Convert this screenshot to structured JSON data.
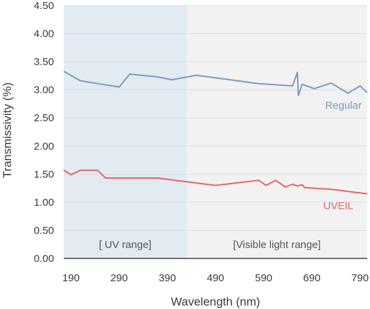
{
  "chart_data": {
    "type": "line",
    "xlabel": "Wavelength (nm)",
    "ylabel": "Transmissivity (%)",
    "xlim": [
      175,
      805
    ],
    "ylim": [
      0,
      4.5
    ],
    "x_ticks": [
      "190",
      "290",
      "390",
      "490",
      "590",
      "690",
      "790"
    ],
    "y_ticks": [
      "0.00",
      "0.50",
      "1.00",
      "1.50",
      "2.00",
      "2.50",
      "3.00",
      "3.50",
      "4.00",
      "4.50"
    ],
    "regions": [
      {
        "label": "[ UV range]",
        "from": 175,
        "to": 430,
        "color": "#e2eaf2"
      },
      {
        "label": "[Visible light range]",
        "from": 430,
        "to": 805,
        "color": "#f2f2f2"
      }
    ],
    "series": [
      {
        "name": "Regular",
        "color": "#7b9bbd",
        "points": [
          [
            175,
            3.33
          ],
          [
            210,
            3.16
          ],
          [
            290,
            3.05
          ],
          [
            312,
            3.28
          ],
          [
            370,
            3.23
          ],
          [
            400,
            3.18
          ],
          [
            450,
            3.26
          ],
          [
            580,
            3.11
          ],
          [
            650,
            3.07
          ],
          [
            660,
            3.31
          ],
          [
            662,
            2.9
          ],
          [
            670,
            3.1
          ],
          [
            695,
            3.02
          ],
          [
            730,
            3.12
          ],
          [
            765,
            2.94
          ],
          [
            790,
            3.07
          ],
          [
            805,
            2.95
          ]
        ]
      },
      {
        "name": "UVEIL",
        "color": "#e36466",
        "points": [
          [
            175,
            1.57
          ],
          [
            190,
            1.49
          ],
          [
            210,
            1.57
          ],
          [
            245,
            1.57
          ],
          [
            262,
            1.43
          ],
          [
            370,
            1.43
          ],
          [
            490,
            1.3
          ],
          [
            580,
            1.39
          ],
          [
            595,
            1.3
          ],
          [
            615,
            1.39
          ],
          [
            635,
            1.27
          ],
          [
            650,
            1.32
          ],
          [
            660,
            1.29
          ],
          [
            670,
            1.31
          ],
          [
            675,
            1.26
          ],
          [
            730,
            1.23
          ],
          [
            805,
            1.15
          ]
        ]
      }
    ]
  }
}
